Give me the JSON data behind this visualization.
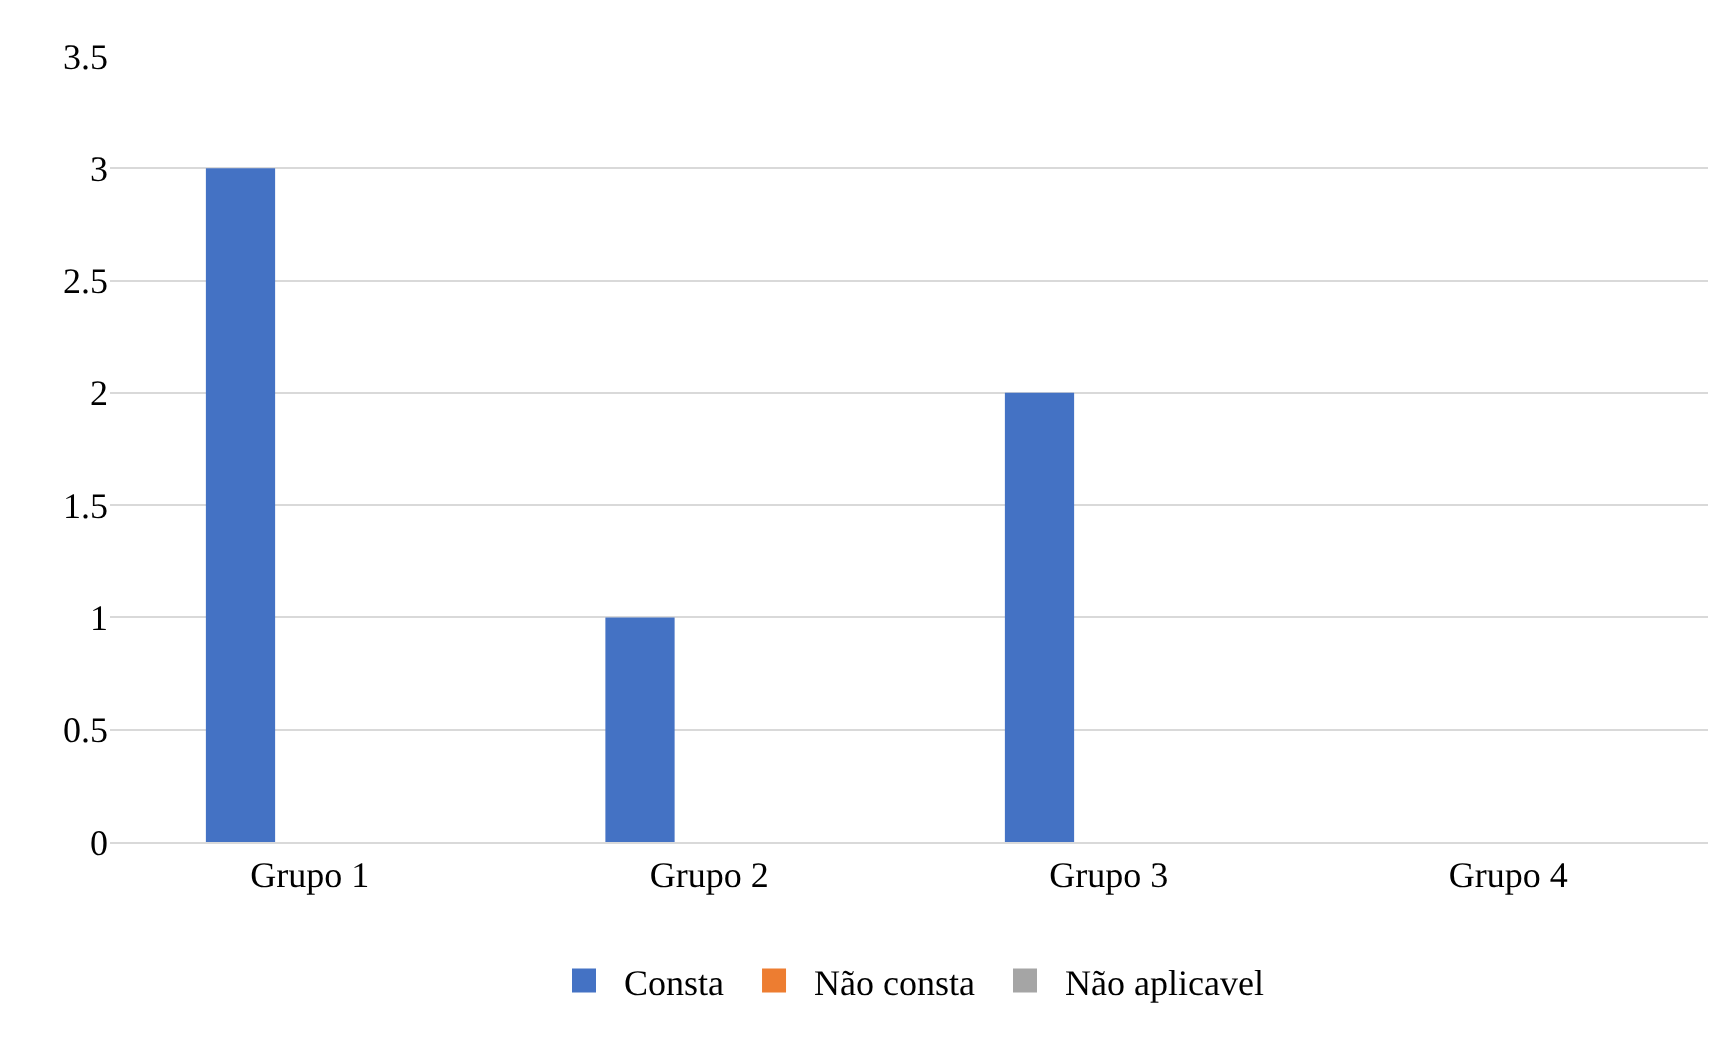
{
  "chart_data": {
    "type": "bar",
    "categories": [
      "Grupo 1",
      "Grupo 2",
      "Grupo 3",
      "Grupo 4"
    ],
    "series": [
      {
        "name": "Consta",
        "color": "#4472c4",
        "values": [
          3,
          1,
          2,
          0
        ]
      },
      {
        "name": "Não consta",
        "color": "#ed7d31",
        "values": [
          0,
          0,
          0,
          0
        ]
      },
      {
        "name": "Não aplicavel",
        "color": "#a5a5a5",
        "values": [
          0,
          0,
          0,
          0
        ]
      }
    ],
    "ylim": [
      0,
      3.5
    ],
    "yticks": [
      0,
      0.5,
      1,
      1.5,
      2,
      2.5,
      3,
      3.5
    ],
    "grid": "y",
    "legend": "bottom"
  }
}
